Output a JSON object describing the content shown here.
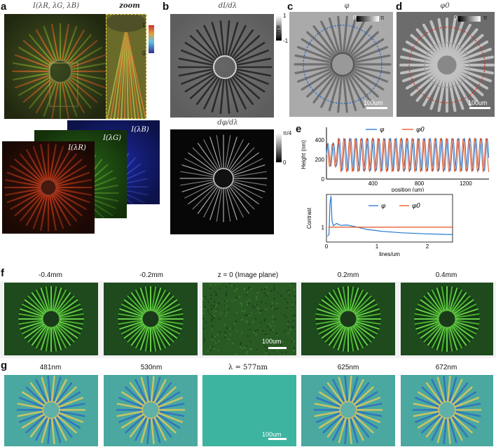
{
  "panels": {
    "a": {
      "label": "a",
      "title": "I(λR, λG, λB)",
      "zoom": "zoom",
      "cb_max": "1",
      "cb_min": "0",
      "ch_r": "I(λR)",
      "ch_g": "I(λG)",
      "ch_b": "I(λB)"
    },
    "b": {
      "label": "b",
      "title": "dI/dλ",
      "cb_max": "1",
      "cb_min": "-1",
      "cb_unit": "a.u.",
      "title2": "dφ/dλ",
      "cb2_max": "π/4",
      "cb2_min": "0"
    },
    "c": {
      "label": "c",
      "title": "φ",
      "cb_min": "0",
      "cb_max": "π",
      "scale": "100um"
    },
    "d": {
      "label": "d",
      "title": "φ0",
      "cb_min": "0",
      "cb_max": "π",
      "scale": "100um"
    },
    "e": {
      "label": "e"
    },
    "f": {
      "label": "f",
      "captions": [
        "-0.4mm",
        "-0.2mm",
        "z = 0 (Image plane)",
        "0.2mm",
        "0.4mm"
      ],
      "scale": "100um"
    },
    "g": {
      "label": "g",
      "captions": [
        "481nm",
        "530nm",
        "λ = 577nm",
        "625nm",
        "672nm"
      ],
      "scale": "100um"
    }
  },
  "chart_data": [
    {
      "type": "line",
      "xlabel": "position (um)",
      "ylabel": "Height (nm)",
      "xlim": [
        0,
        1400
      ],
      "ylim": [
        0,
        500
      ],
      "xticks": [
        400,
        800,
        1200
      ],
      "yticks": [
        0,
        200,
        400
      ],
      "legend": "top",
      "series": [
        {
          "name": "φ",
          "color": "#1f77d0",
          "period": 49,
          "amplitude": 170,
          "offset": 250
        },
        {
          "name": "φ0",
          "color": "#e8501e",
          "period": 49,
          "amplitude": 175,
          "offset": 245
        }
      ]
    },
    {
      "type": "line",
      "xlabel": "lines/um",
      "ylabel": "Contrast",
      "xlim": [
        0,
        2.5
      ],
      "xticks": [
        0,
        1,
        2
      ],
      "yticks": [
        1
      ],
      "legend": "top",
      "series": [
        {
          "name": "φ",
          "color": "#1f77d0"
        },
        {
          "name": "φ0",
          "color": "#e8501e"
        }
      ]
    }
  ]
}
